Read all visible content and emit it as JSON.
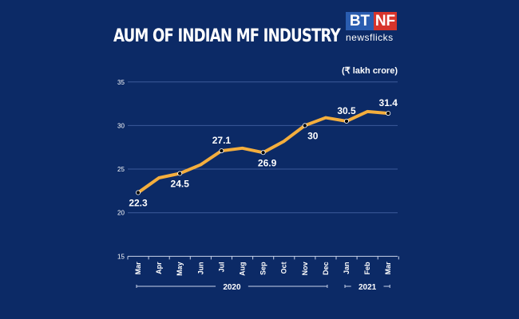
{
  "logo": {
    "left": "BT",
    "right": "NF",
    "sub": "newsflicks"
  },
  "colors": {
    "background": "#0c2a66",
    "line": "#f4ae3d",
    "grid": "#3d5a9a",
    "marker": "#000000"
  },
  "chart_data": {
    "type": "line",
    "title": "AUM OF INDIAN MF INDUSTRY",
    "unit_label": "(₹ lakh crore)",
    "categories": [
      "Mar",
      "Apr",
      "May",
      "Jun",
      "Jul",
      "Aug",
      "Sep",
      "Oct",
      "Nov",
      "Dec",
      "Jan",
      "Feb",
      "Mar"
    ],
    "year_groups": [
      {
        "label": "2020",
        "from": 0,
        "to": 9
      },
      {
        "label": "2021",
        "from": 10,
        "to": 12
      }
    ],
    "values": [
      22.3,
      24.0,
      24.5,
      25.5,
      27.1,
      27.4,
      26.9,
      28.2,
      30.0,
      30.9,
      30.5,
      31.6,
      31.4
    ],
    "labels": [
      {
        "index": 0,
        "text": "22.3",
        "pos": "below"
      },
      {
        "index": 2,
        "text": "24.5",
        "pos": "below"
      },
      {
        "index": 4,
        "text": "27.1",
        "pos": "above"
      },
      {
        "index": 6,
        "text": "26.9",
        "pos": "below"
      },
      {
        "index": 8,
        "text": "30",
        "pos": "below"
      },
      {
        "index": 10,
        "text": "30.5",
        "pos": "above"
      },
      {
        "index": 12,
        "text": "31.4",
        "pos": "above"
      }
    ],
    "yticks": [
      15,
      20,
      25,
      30,
      35
    ],
    "ylim": [
      15,
      35
    ],
    "grid": true
  }
}
